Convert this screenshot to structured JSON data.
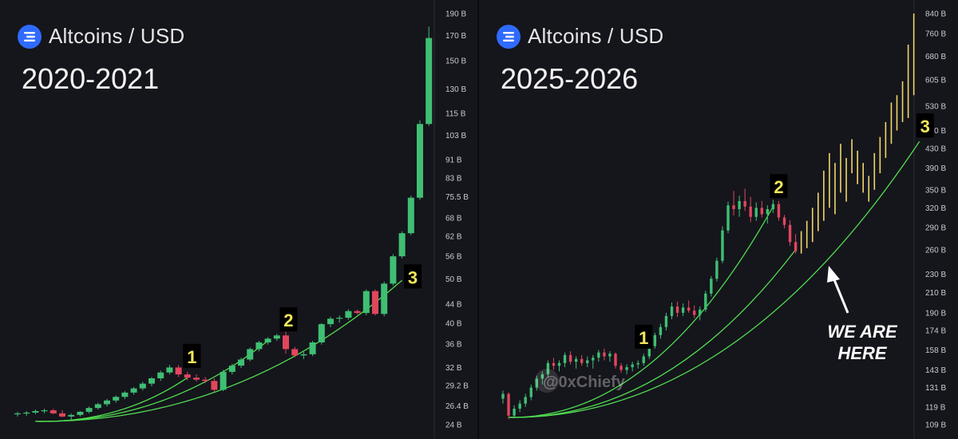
{
  "colors": {
    "up": "#3fbf73",
    "down": "#e0475d",
    "curve": "#4fdc4f",
    "projection": "#efd76a",
    "marker_bg": "#000000",
    "marker_text": "#f2e75a",
    "axis_text": "#c9c9cf",
    "logo": "#2f6bff"
  },
  "icons": {
    "logo": "stacked-bars-icon",
    "watermark": "x-logo-icon",
    "arrow": "arrow-up-left-icon"
  },
  "left": {
    "pair": "Altcoins / USD",
    "years": "2020-2021",
    "axis_ticks": [
      "190 B",
      "170 B",
      "150 B",
      "130 B",
      "115 B",
      "103 B",
      "91 B",
      "83 B",
      "75.5 B",
      "68 B",
      "62 B",
      "56 B",
      "50 B",
      "44 B",
      "40 B",
      "36 B",
      "32 B",
      "29.2 B",
      "26.4 B",
      "24 B"
    ],
    "markers": [
      "1",
      "2",
      "3"
    ]
  },
  "right": {
    "pair": "Altcoins / USD",
    "years": "2025-2026",
    "axis_ticks": [
      "840 B",
      "760 B",
      "680 B",
      "605 B",
      "530 B",
      "470 B",
      "430 B",
      "390 B",
      "350 B",
      "320 B",
      "290 B",
      "260 B",
      "230 B",
      "210 B",
      "190 B",
      "174 B",
      "158 B",
      "143 B",
      "131 B",
      "119 B",
      "109 B"
    ],
    "markers": [
      "1",
      "2",
      "3"
    ],
    "note_line1": "WE ARE",
    "note_line2": "HERE",
    "watermark": "@0xChiefy"
  },
  "chart_data": [
    {
      "type": "candlestick",
      "title": "Altcoins / USD 2020-2021",
      "y_scale": "log",
      "ylim": [
        24,
        190
      ],
      "unit": "B",
      "candles": [
        {
          "o": 25.3,
          "h": 25.6,
          "l": 25.0,
          "c": 25.4
        },
        {
          "o": 25.4,
          "h": 25.7,
          "l": 25.1,
          "c": 25.5
        },
        {
          "o": 25.5,
          "h": 25.9,
          "l": 25.3,
          "c": 25.7
        },
        {
          "o": 25.7,
          "h": 26.0,
          "l": 25.4,
          "c": 25.8
        },
        {
          "o": 25.8,
          "h": 26.0,
          "l": 25.3,
          "c": 25.4
        },
        {
          "o": 25.4,
          "h": 25.8,
          "l": 24.9,
          "c": 25.0
        },
        {
          "o": 25.0,
          "h": 25.4,
          "l": 24.6,
          "c": 25.2
        },
        {
          "o": 25.2,
          "h": 25.7,
          "l": 25.0,
          "c": 25.6
        },
        {
          "o": 25.6,
          "h": 26.3,
          "l": 25.4,
          "c": 26.1
        },
        {
          "o": 26.1,
          "h": 26.8,
          "l": 25.9,
          "c": 26.6
        },
        {
          "o": 26.6,
          "h": 27.3,
          "l": 26.3,
          "c": 27.1
        },
        {
          "o": 27.1,
          "h": 27.8,
          "l": 26.8,
          "c": 27.6
        },
        {
          "o": 27.6,
          "h": 28.4,
          "l": 27.3,
          "c": 28.2
        },
        {
          "o": 28.2,
          "h": 29.0,
          "l": 27.9,
          "c": 28.8
        },
        {
          "o": 28.8,
          "h": 29.8,
          "l": 28.5,
          "c": 29.5
        },
        {
          "o": 29.5,
          "h": 30.5,
          "l": 29.1,
          "c": 30.3
        },
        {
          "o": 30.3,
          "h": 31.5,
          "l": 29.9,
          "c": 31.2
        },
        {
          "o": 31.2,
          "h": 32.4,
          "l": 30.9,
          "c": 32.0
        },
        {
          "o": 32.0,
          "h": 32.4,
          "l": 30.5,
          "c": 30.9
        },
        {
          "o": 30.9,
          "h": 31.3,
          "l": 30.0,
          "c": 30.4
        },
        {
          "o": 30.4,
          "h": 30.9,
          "l": 29.8,
          "c": 30.1
        },
        {
          "o": 30.1,
          "h": 30.5,
          "l": 29.6,
          "c": 29.9
        },
        {
          "o": 29.9,
          "h": 30.3,
          "l": 28.3,
          "c": 28.6
        },
        {
          "o": 28.6,
          "h": 31.6,
          "l": 28.4,
          "c": 31.3
        },
        {
          "o": 31.3,
          "h": 32.6,
          "l": 30.9,
          "c": 32.3
        },
        {
          "o": 32.3,
          "h": 33.6,
          "l": 31.9,
          "c": 33.3
        },
        {
          "o": 33.3,
          "h": 35.4,
          "l": 33.0,
          "c": 35.1
        },
        {
          "o": 35.1,
          "h": 36.6,
          "l": 34.7,
          "c": 36.3
        },
        {
          "o": 36.3,
          "h": 37.3,
          "l": 35.9,
          "c": 37.0
        },
        {
          "o": 37.0,
          "h": 37.9,
          "l": 36.6,
          "c": 37.6
        },
        {
          "o": 37.6,
          "h": 38.3,
          "l": 34.3,
          "c": 35.1
        },
        {
          "o": 35.1,
          "h": 35.5,
          "l": 33.7,
          "c": 34.0
        },
        {
          "o": 34.0,
          "h": 34.6,
          "l": 33.4,
          "c": 34.2
        },
        {
          "o": 34.2,
          "h": 36.6,
          "l": 33.9,
          "c": 36.3
        },
        {
          "o": 36.3,
          "h": 40.0,
          "l": 35.9,
          "c": 39.8
        },
        {
          "o": 39.8,
          "h": 41.3,
          "l": 39.2,
          "c": 40.9
        },
        {
          "o": 40.9,
          "h": 41.6,
          "l": 40.1,
          "c": 41.1
        },
        {
          "o": 41.1,
          "h": 42.9,
          "l": 40.7,
          "c": 42.5
        },
        {
          "o": 42.5,
          "h": 42.8,
          "l": 41.8,
          "c": 42.1
        },
        {
          "o": 42.1,
          "h": 47.4,
          "l": 41.6,
          "c": 47.0
        },
        {
          "o": 47.0,
          "h": 47.4,
          "l": 41.6,
          "c": 41.9
        },
        {
          "o": 41.9,
          "h": 49.3,
          "l": 41.4,
          "c": 48.8
        },
        {
          "o": 48.8,
          "h": 56.6,
          "l": 48.3,
          "c": 56.0
        },
        {
          "o": 56.0,
          "h": 63.5,
          "l": 55.4,
          "c": 62.9
        },
        {
          "o": 62.9,
          "h": 76.0,
          "l": 62.3,
          "c": 75.2
        },
        {
          "o": 75.2,
          "h": 111.0,
          "l": 74.4,
          "c": 109.0
        },
        {
          "o": 109.0,
          "h": 178.0,
          "l": 108.0,
          "c": 168.0
        }
      ],
      "curves": [
        {
          "from": [
            2,
            24.4
          ],
          "to": [
            19,
            30.4
          ]
        },
        {
          "from": [
            2,
            24.4
          ],
          "to": [
            28,
            36.6
          ]
        },
        {
          "from": [
            2,
            24.4
          ],
          "to": [
            43,
            49.6
          ]
        }
      ],
      "markers": [
        {
          "label": "1",
          "x": 19.5,
          "y": 33.8
        },
        {
          "label": "2",
          "x": 30.3,
          "y": 40.6
        },
        {
          "label": "3",
          "x": 44.2,
          "y": 50.4
        }
      ]
    },
    {
      "type": "candlestick",
      "title": "Altcoins / USD 2025-2026",
      "y_scale": "log",
      "ylim": [
        109,
        840
      ],
      "unit": "B",
      "candles": [
        {
          "o": 124,
          "h": 129,
          "l": 121,
          "c": 127
        },
        {
          "o": 127,
          "h": 128,
          "l": 112,
          "c": 114
        },
        {
          "o": 114,
          "h": 120,
          "l": 113,
          "c": 118
        },
        {
          "o": 118,
          "h": 123,
          "l": 116,
          "c": 121
        },
        {
          "o": 121,
          "h": 127,
          "l": 119,
          "c": 125
        },
        {
          "o": 125,
          "h": 133,
          "l": 123,
          "c": 131
        },
        {
          "o": 131,
          "h": 139,
          "l": 129,
          "c": 137
        },
        {
          "o": 137,
          "h": 142,
          "l": 133,
          "c": 140
        },
        {
          "o": 140,
          "h": 150,
          "l": 138,
          "c": 148
        },
        {
          "o": 148,
          "h": 152,
          "l": 143,
          "c": 146
        },
        {
          "o": 146,
          "h": 150,
          "l": 142,
          "c": 148
        },
        {
          "o": 148,
          "h": 156,
          "l": 145,
          "c": 154
        },
        {
          "o": 154,
          "h": 157,
          "l": 147,
          "c": 149
        },
        {
          "o": 149,
          "h": 153,
          "l": 144,
          "c": 151
        },
        {
          "o": 151,
          "h": 154,
          "l": 146,
          "c": 148
        },
        {
          "o": 148,
          "h": 153,
          "l": 145,
          "c": 150
        },
        {
          "o": 150,
          "h": 154,
          "l": 144,
          "c": 152
        },
        {
          "o": 152,
          "h": 158,
          "l": 149,
          "c": 156
        },
        {
          "o": 156,
          "h": 159,
          "l": 150,
          "c": 153
        },
        {
          "o": 153,
          "h": 157,
          "l": 149,
          "c": 155
        },
        {
          "o": 155,
          "h": 156,
          "l": 144,
          "c": 146
        },
        {
          "o": 146,
          "h": 148,
          "l": 141,
          "c": 143
        },
        {
          "o": 143,
          "h": 147,
          "l": 140,
          "c": 145
        },
        {
          "o": 145,
          "h": 149,
          "l": 142,
          "c": 147
        },
        {
          "o": 147,
          "h": 150,
          "l": 144,
          "c": 148
        },
        {
          "o": 148,
          "h": 155,
          "l": 146,
          "c": 153
        },
        {
          "o": 153,
          "h": 163,
          "l": 151,
          "c": 161
        },
        {
          "o": 161,
          "h": 172,
          "l": 159,
          "c": 170
        },
        {
          "o": 170,
          "h": 180,
          "l": 167,
          "c": 177
        },
        {
          "o": 177,
          "h": 190,
          "l": 174,
          "c": 187
        },
        {
          "o": 187,
          "h": 200,
          "l": 184,
          "c": 196
        },
        {
          "o": 196,
          "h": 201,
          "l": 186,
          "c": 190
        },
        {
          "o": 190,
          "h": 199,
          "l": 187,
          "c": 195
        },
        {
          "o": 195,
          "h": 202,
          "l": 190,
          "c": 192
        },
        {
          "o": 192,
          "h": 197,
          "l": 185,
          "c": 188
        },
        {
          "o": 188,
          "h": 196,
          "l": 183,
          "c": 193
        },
        {
          "o": 193,
          "h": 212,
          "l": 191,
          "c": 209
        },
        {
          "o": 209,
          "h": 228,
          "l": 206,
          "c": 225
        },
        {
          "o": 225,
          "h": 250,
          "l": 222,
          "c": 246
        },
        {
          "o": 246,
          "h": 292,
          "l": 243,
          "c": 286
        },
        {
          "o": 286,
          "h": 330,
          "l": 282,
          "c": 324
        },
        {
          "o": 324,
          "h": 348,
          "l": 308,
          "c": 318
        },
        {
          "o": 318,
          "h": 340,
          "l": 306,
          "c": 331
        },
        {
          "o": 331,
          "h": 352,
          "l": 315,
          "c": 322
        },
        {
          "o": 322,
          "h": 338,
          "l": 298,
          "c": 306
        },
        {
          "o": 306,
          "h": 329,
          "l": 300,
          "c": 320
        },
        {
          "o": 320,
          "h": 331,
          "l": 305,
          "c": 310
        },
        {
          "o": 310,
          "h": 324,
          "l": 296,
          "c": 318
        },
        {
          "o": 318,
          "h": 333,
          "l": 312,
          "c": 326
        },
        {
          "o": 326,
          "h": 331,
          "l": 300,
          "c": 305
        },
        {
          "o": 305,
          "h": 309,
          "l": 289,
          "c": 294
        },
        {
          "o": 294,
          "h": 301,
          "l": 265,
          "c": 270
        },
        {
          "o": 270,
          "h": 281,
          "l": 255,
          "c": 258
        }
      ],
      "projection": [
        [
          255,
          285
        ],
        [
          262,
          300
        ],
        [
          270,
          320
        ],
        [
          285,
          345
        ],
        [
          300,
          385
        ],
        [
          320,
          420
        ],
        [
          310,
          400
        ],
        [
          345,
          440
        ],
        [
          330,
          410
        ],
        [
          380,
          450
        ],
        [
          360,
          425
        ],
        [
          345,
          400
        ],
        [
          330,
          375
        ],
        [
          350,
          420
        ],
        [
          380,
          455
        ],
        [
          410,
          490
        ],
        [
          440,
          540
        ],
        [
          470,
          560
        ],
        [
          490,
          600
        ],
        [
          500,
          720
        ],
        [
          560,
          840
        ]
      ],
      "curves": [
        {
          "from": [
            1,
            113
          ],
          "to": [
            48,
            322
          ]
        },
        {
          "from": [
            1,
            113
          ],
          "to": [
            52,
            260
          ]
        },
        {
          "from": [
            1,
            113
          ],
          "to": [
            74,
            445
          ]
        }
      ],
      "markers": [
        {
          "label": "1",
          "x": 25,
          "y": 168
        },
        {
          "label": "2",
          "x": 49,
          "y": 355
        },
        {
          "label": "3",
          "x": 75,
          "y": 480
        }
      ]
    }
  ]
}
